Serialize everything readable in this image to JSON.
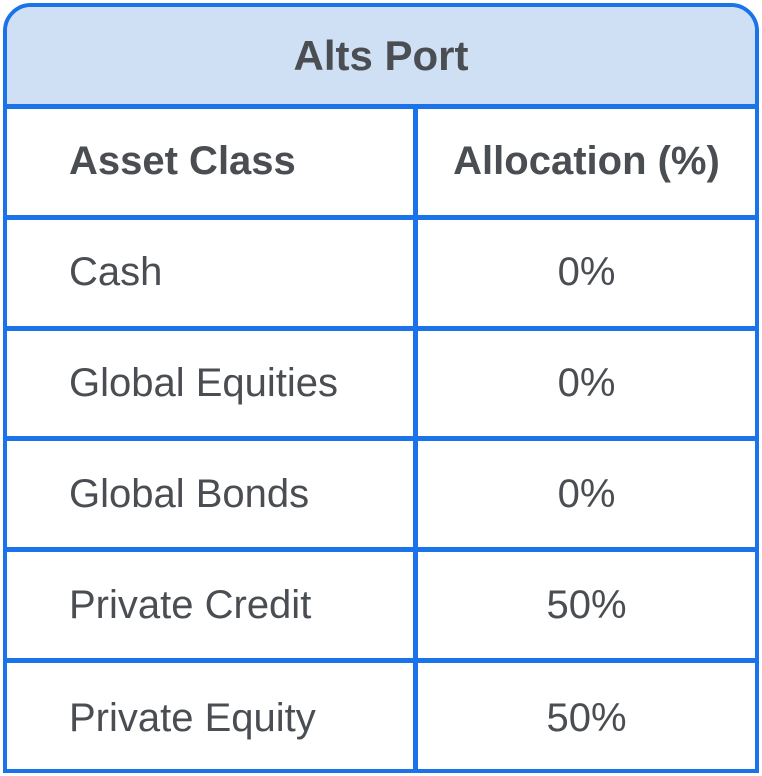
{
  "table": {
    "title": "Alts Port",
    "headers": [
      "Asset Class",
      "Allocation (%)"
    ],
    "rows": [
      {
        "asset_class": "Cash",
        "allocation": "0%"
      },
      {
        "asset_class": "Global Equities",
        "allocation": "0%"
      },
      {
        "asset_class": "Global Bonds",
        "allocation": "0%"
      },
      {
        "asset_class": "Private Credit",
        "allocation": "50%"
      },
      {
        "asset_class": "Private Equity",
        "allocation": "50%"
      }
    ]
  },
  "colors": {
    "border": "#1a73e8",
    "title_background": "#cfe0f5",
    "text": "#4a4d52"
  }
}
